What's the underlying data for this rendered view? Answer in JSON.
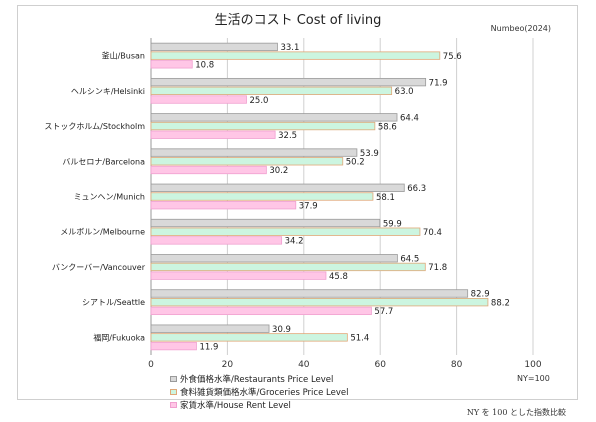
{
  "chart_data": {
    "type": "bar",
    "orientation": "horizontal",
    "title": "生活のコスト Cost of living",
    "source_label": "Numbeo(2024)",
    "index_note": "NY=100",
    "footnote": "NY を 100 とした指数比較",
    "categories": [
      "釜山/Busan",
      "ヘルシンキ/Helsinki",
      "ストックホルム/Stockholm",
      "バルセロナ/Barcelona",
      "ミュンヘン/Munich",
      "メルボルン/Melbourne",
      "バンクーバー/Vancouver",
      "シアトル/Seattle",
      "福岡/Fukuoka"
    ],
    "series": [
      {
        "name": "外食価格水準/Restaurants Price Level",
        "color": "#d9d9d9",
        "stroke": "#9a9a9a",
        "values": [
          33.1,
          71.9,
          64.4,
          53.9,
          66.3,
          59.9,
          64.5,
          82.9,
          30.9
        ]
      },
      {
        "name": "食料雑貨類価格水準/Groceries Price Level",
        "color": "#ccf5e0",
        "stroke": "#e0a878",
        "values": [
          75.6,
          63.0,
          58.6,
          50.2,
          58.1,
          70.4,
          71.8,
          88.2,
          51.4
        ]
      },
      {
        "name": "家賃水準/House Rent Level",
        "color": "#ffc6e6",
        "stroke": "#f0a0d0",
        "values": [
          10.8,
          25.0,
          32.5,
          30.2,
          37.9,
          34.2,
          45.8,
          57.7,
          11.9
        ]
      }
    ],
    "x_ticks": [
      0,
      20,
      40,
      60,
      80,
      100
    ],
    "xlim": [
      0,
      100
    ],
    "grid": true,
    "legend_position": "bottom-left"
  }
}
